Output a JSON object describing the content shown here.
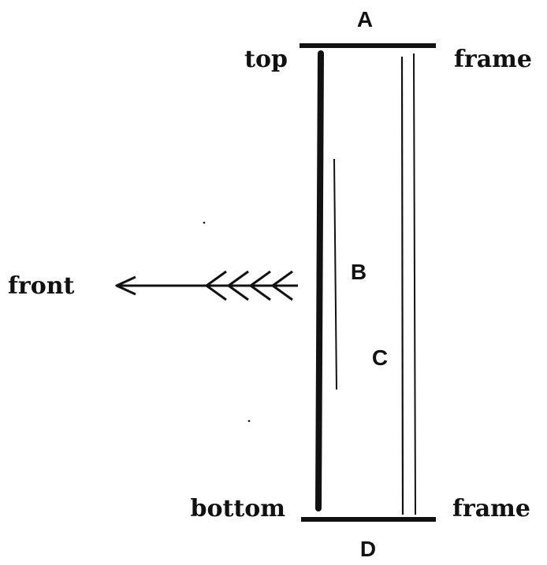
{
  "labels": {
    "top_letter": "A",
    "bottom_letter": "D",
    "inner_letter_b": "B",
    "inner_letter_c": "C",
    "top_left": "top",
    "top_right": "frame",
    "bottom_left": "bottom",
    "bottom_right": "frame",
    "direction": "front"
  },
  "colors": {
    "ink": "#111111",
    "background": "#ffffff"
  }
}
